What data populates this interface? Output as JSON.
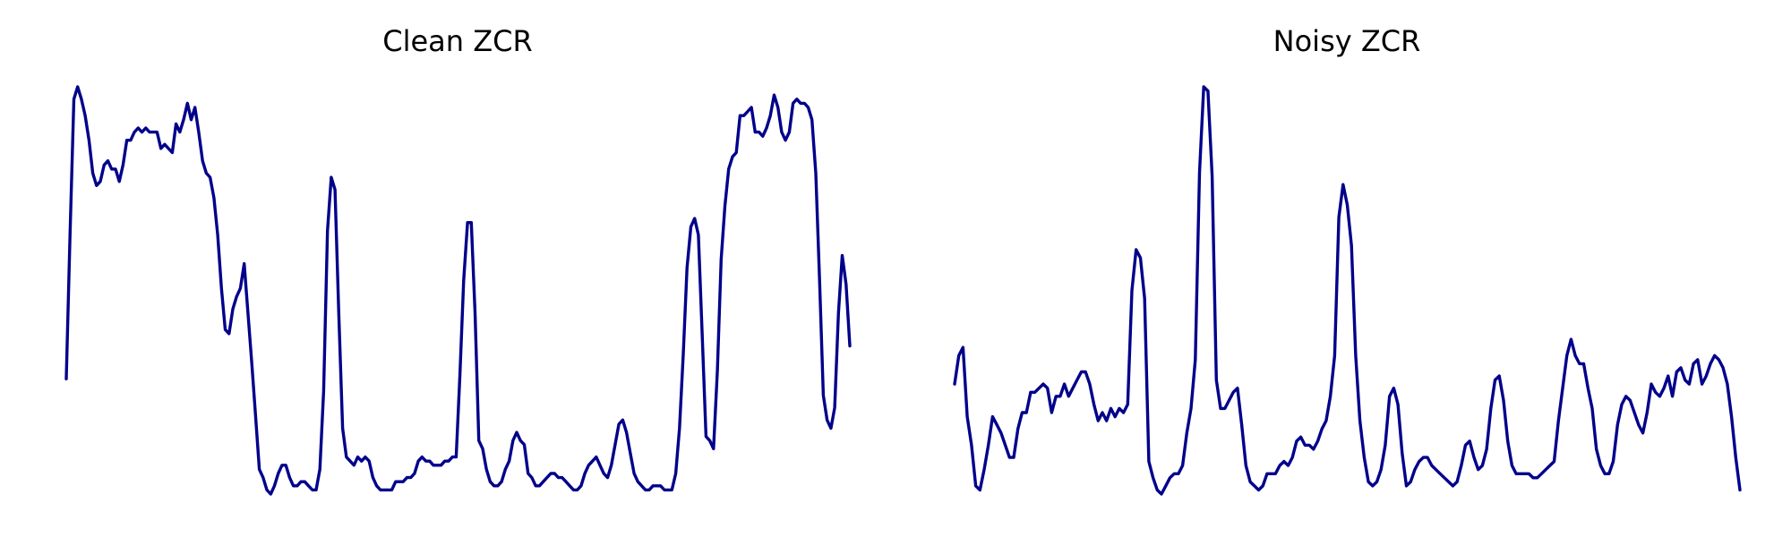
{
  "chart_data": [
    {
      "type": "line",
      "title": "Clean ZCR",
      "axis": "off",
      "grid": false,
      "color": "#00008b",
      "values": [
        0.29,
        0.64,
        0.97,
        1.0,
        0.97,
        0.93,
        0.87,
        0.79,
        0.76,
        0.77,
        0.81,
        0.82,
        0.8,
        0.8,
        0.77,
        0.81,
        0.87,
        0.87,
        0.89,
        0.9,
        0.89,
        0.9,
        0.89,
        0.89,
        0.89,
        0.85,
        0.86,
        0.85,
        0.84,
        0.91,
        0.89,
        0.92,
        0.96,
        0.92,
        0.95,
        0.89,
        0.82,
        0.79,
        0.78,
        0.73,
        0.64,
        0.51,
        0.41,
        0.4,
        0.46,
        0.49,
        0.51,
        0.57,
        0.45,
        0.33,
        0.2,
        0.07,
        0.05,
        0.02,
        0.01,
        0.03,
        0.06,
        0.08,
        0.08,
        0.05,
        0.03,
        0.03,
        0.04,
        0.04,
        0.03,
        0.02,
        0.02,
        0.07,
        0.26,
        0.65,
        0.78,
        0.75,
        0.45,
        0.17,
        0.1,
        0.09,
        0.08,
        0.1,
        0.09,
        0.1,
        0.09,
        0.05,
        0.03,
        0.02,
        0.02,
        0.02,
        0.02,
        0.04,
        0.04,
        0.04,
        0.05,
        0.05,
        0.06,
        0.09,
        0.1,
        0.09,
        0.09,
        0.08,
        0.08,
        0.08,
        0.09,
        0.09,
        0.1,
        0.1,
        0.3,
        0.53,
        0.67,
        0.67,
        0.45,
        0.14,
        0.12,
        0.07,
        0.04,
        0.03,
        0.03,
        0.04,
        0.07,
        0.09,
        0.14,
        0.16,
        0.14,
        0.13,
        0.06,
        0.05,
        0.03,
        0.03,
        0.04,
        0.05,
        0.06,
        0.06,
        0.05,
        0.05,
        0.04,
        0.03,
        0.02,
        0.02,
        0.03,
        0.06,
        0.08,
        0.09,
        0.1,
        0.08,
        0.06,
        0.05,
        0.08,
        0.13,
        0.18,
        0.19,
        0.16,
        0.11,
        0.06,
        0.04,
        0.03,
        0.02,
        0.02,
        0.03,
        0.03,
        0.03,
        0.02,
        0.02,
        0.02,
        0.06,
        0.17,
        0.35,
        0.56,
        0.66,
        0.68,
        0.64,
        0.4,
        0.15,
        0.14,
        0.12,
        0.31,
        0.58,
        0.71,
        0.8,
        0.83,
        0.84,
        0.93,
        0.93,
        0.94,
        0.95,
        0.89,
        0.89,
        0.88,
        0.9,
        0.93,
        0.98,
        0.95,
        0.89,
        0.87,
        0.89,
        0.96,
        0.97,
        0.96,
        0.96,
        0.95,
        0.92,
        0.79,
        0.53,
        0.25,
        0.19,
        0.17,
        0.22,
        0.45,
        0.59,
        0.52,
        0.37
      ]
    },
    {
      "type": "line",
      "title": "Noisy ZCR",
      "axis": "off",
      "grid": false,
      "color": "#00008b",
      "values": [
        0.27,
        0.34,
        0.36,
        0.19,
        0.12,
        0.02,
        0.01,
        0.06,
        0.12,
        0.19,
        0.17,
        0.15,
        0.12,
        0.09,
        0.09,
        0.16,
        0.2,
        0.2,
        0.25,
        0.25,
        0.26,
        0.27,
        0.26,
        0.2,
        0.24,
        0.24,
        0.27,
        0.24,
        0.26,
        0.28,
        0.3,
        0.3,
        0.27,
        0.22,
        0.18,
        0.2,
        0.18,
        0.21,
        0.19,
        0.21,
        0.2,
        0.22,
        0.5,
        0.6,
        0.58,
        0.48,
        0.08,
        0.04,
        0.01,
        0.0,
        0.02,
        0.04,
        0.05,
        0.05,
        0.07,
        0.15,
        0.21,
        0.33,
        0.79,
        1.0,
        0.99,
        0.78,
        0.28,
        0.21,
        0.21,
        0.23,
        0.25,
        0.26,
        0.17,
        0.07,
        0.03,
        0.02,
        0.01,
        0.02,
        0.05,
        0.05,
        0.05,
        0.07,
        0.08,
        0.07,
        0.09,
        0.13,
        0.14,
        0.12,
        0.12,
        0.11,
        0.13,
        0.16,
        0.18,
        0.24,
        0.34,
        0.68,
        0.76,
        0.71,
        0.61,
        0.34,
        0.18,
        0.09,
        0.03,
        0.02,
        0.03,
        0.06,
        0.12,
        0.24,
        0.26,
        0.22,
        0.1,
        0.02,
        0.03,
        0.06,
        0.08,
        0.09,
        0.09,
        0.07,
        0.06,
        0.05,
        0.04,
        0.03,
        0.02,
        0.03,
        0.07,
        0.12,
        0.13,
        0.09,
        0.06,
        0.07,
        0.11,
        0.21,
        0.28,
        0.29,
        0.23,
        0.13,
        0.07,
        0.05,
        0.05,
        0.05,
        0.05,
        0.04,
        0.04,
        0.05,
        0.06,
        0.07,
        0.08,
        0.18,
        0.26,
        0.34,
        0.38,
        0.34,
        0.32,
        0.32,
        0.26,
        0.21,
        0.11,
        0.07,
        0.05,
        0.05,
        0.08,
        0.17,
        0.22,
        0.24,
        0.23,
        0.2,
        0.17,
        0.15,
        0.2,
        0.27,
        0.25,
        0.24,
        0.26,
        0.29,
        0.24,
        0.3,
        0.31,
        0.28,
        0.27,
        0.32,
        0.33,
        0.27,
        0.29,
        0.32,
        0.34,
        0.33,
        0.31,
        0.27,
        0.19,
        0.09,
        0.01
      ]
    }
  ]
}
